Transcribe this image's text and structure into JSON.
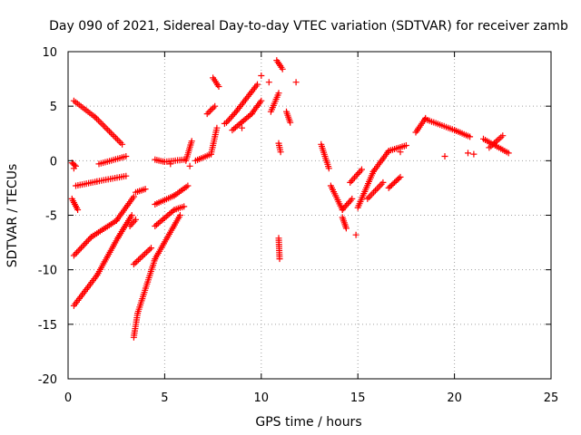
{
  "chart_data": {
    "type": "scatter",
    "title": "Day 090 of 2021, Sidereal Day-to-day VTEC variation (SDTVAR) for receiver zamb",
    "xlabel": "GPS time / hours",
    "ylabel": "SDTVAR / TECUs",
    "xlim": [
      0,
      25
    ],
    "ylim": [
      -20,
      10
    ],
    "xticks": [
      "0",
      "5",
      "10",
      "15",
      "20",
      "25"
    ],
    "yticks": [
      "-20",
      "-15",
      "-10",
      "-5",
      "0",
      "5",
      "10"
    ],
    "grid": true,
    "marker": "plus",
    "color": "#ff0000",
    "series": [
      {
        "name": "arc-01",
        "segments": [
          [
            0.3,
            5.5,
            1.4,
            4.0
          ],
          [
            1.4,
            4.0,
            2.8,
            1.5
          ]
        ]
      },
      {
        "name": "arc-02",
        "segments": [
          [
            0.2,
            -0.2,
            0.4,
            -0.5
          ]
        ]
      },
      {
        "name": "arc-03",
        "segments": [
          [
            0.4,
            -2.3,
            1.5,
            -1.9
          ],
          [
            1.5,
            -1.9,
            3.0,
            -1.4
          ]
        ]
      },
      {
        "name": "arc-04",
        "segments": [
          [
            1.6,
            -0.3,
            3.0,
            0.4
          ]
        ]
      },
      {
        "name": "arc-05",
        "segments": [
          [
            0.2,
            -3.5,
            0.5,
            -4.5
          ]
        ]
      },
      {
        "name": "arc-06",
        "segments": [
          [
            0.3,
            -8.7,
            1.2,
            -7.0
          ],
          [
            1.2,
            -7.0,
            2.5,
            -5.5
          ],
          [
            2.5,
            -5.5,
            3.4,
            -3.3
          ]
        ]
      },
      {
        "name": "arc-07",
        "segments": [
          [
            0.3,
            -13.3,
            1.5,
            -10.5
          ],
          [
            1.5,
            -10.5,
            2.6,
            -7.0
          ],
          [
            2.6,
            -7.0,
            3.3,
            -5.0
          ]
        ]
      },
      {
        "name": "arc-08",
        "segments": [
          [
            3.2,
            -6.0,
            3.5,
            -5.4
          ]
        ]
      },
      {
        "name": "arc-09",
        "segments": [
          [
            3.5,
            -2.9,
            4.0,
            -2.6
          ]
        ]
      },
      {
        "name": "arc-10",
        "segments": [
          [
            3.4,
            -9.5,
            4.3,
            -8.0
          ]
        ]
      },
      {
        "name": "arc-11",
        "segments": [
          [
            3.4,
            -16.2,
            3.6,
            -14.0
          ],
          [
            3.6,
            -14.0,
            4.5,
            -9.0
          ],
          [
            4.5,
            -9.0,
            5.8,
            -5.0
          ]
        ]
      },
      {
        "name": "arc-12",
        "segments": [
          [
            4.5,
            -6.0,
            5.5,
            -4.5
          ],
          [
            5.5,
            -4.5,
            6.0,
            -4.2
          ]
        ]
      },
      {
        "name": "arc-13",
        "segments": [
          [
            4.5,
            -4.0,
            5.5,
            -3.2
          ],
          [
            5.5,
            -3.2,
            6.2,
            -2.3
          ]
        ]
      },
      {
        "name": "arc-14",
        "segments": [
          [
            4.5,
            0.1,
            5.0,
            -0.1
          ],
          [
            5.0,
            -0.1,
            6.0,
            0.1
          ]
        ]
      },
      {
        "name": "arc-15",
        "segments": [
          [
            6.1,
            0.0,
            6.4,
            1.8
          ]
        ]
      },
      {
        "name": "arc-16",
        "segments": [
          [
            6.6,
            0.0,
            7.4,
            0.6
          ],
          [
            7.4,
            0.6,
            7.7,
            3.0
          ]
        ]
      },
      {
        "name": "arc-17",
        "segments": [
          [
            7.2,
            4.3,
            7.6,
            5.0
          ]
        ]
      },
      {
        "name": "arc-18",
        "segments": [
          [
            7.5,
            7.6,
            7.8,
            6.8
          ]
        ]
      },
      {
        "name": "arc-19",
        "segments": [
          [
            8.2,
            3.5,
            8.7,
            4.5
          ],
          [
            8.7,
            4.5,
            9.8,
            7.0
          ]
        ]
      },
      {
        "name": "arc-20",
        "segments": [
          [
            8.5,
            2.8,
            9.5,
            4.3
          ],
          [
            9.5,
            4.3,
            10.0,
            5.5
          ]
        ]
      },
      {
        "name": "arc-21",
        "segments": [
          [
            10.5,
            4.5,
            10.9,
            6.2
          ]
        ]
      },
      {
        "name": "arc-22",
        "segments": [
          [
            10.8,
            9.2,
            11.1,
            8.4
          ]
        ]
      },
      {
        "name": "arc-23",
        "segments": [
          [
            10.9,
            1.6,
            11.0,
            0.8
          ]
        ]
      },
      {
        "name": "arc-24",
        "segments": [
          [
            10.9,
            -7.1,
            10.95,
            -9.0
          ]
        ]
      },
      {
        "name": "arc-25",
        "segments": [
          [
            11.3,
            4.5,
            11.5,
            3.5
          ]
        ]
      },
      {
        "name": "arc-26",
        "segments": [
          [
            13.1,
            1.5,
            13.5,
            -0.7
          ]
        ]
      },
      {
        "name": "arc-27",
        "segments": [
          [
            13.6,
            -2.3,
            14.2,
            -4.5
          ],
          [
            14.2,
            -4.5,
            14.7,
            -3.5
          ]
        ]
      },
      {
        "name": "arc-28",
        "segments": [
          [
            14.2,
            -5.2,
            14.4,
            -6.2
          ]
        ]
      },
      {
        "name": "arc-29",
        "segments": [
          [
            14.6,
            -2.0,
            15.2,
            -0.8
          ]
        ]
      },
      {
        "name": "arc-30",
        "segments": [
          [
            15.0,
            -4.3,
            15.8,
            -1.0
          ],
          [
            15.8,
            -1.0,
            16.6,
            0.9
          ],
          [
            16.6,
            0.9,
            17.5,
            1.4
          ]
        ]
      },
      {
        "name": "arc-31",
        "segments": [
          [
            15.5,
            -3.5,
            16.3,
            -2.0
          ]
        ]
      },
      {
        "name": "arc-32",
        "segments": [
          [
            16.6,
            -2.5,
            17.2,
            -1.5
          ]
        ]
      },
      {
        "name": "arc-33",
        "segments": [
          [
            18.0,
            2.6,
            18.5,
            3.9
          ]
        ]
      },
      {
        "name": "arc-34",
        "segments": [
          [
            18.5,
            3.8,
            20.0,
            2.8
          ],
          [
            20.0,
            2.8,
            20.8,
            2.2
          ]
        ]
      },
      {
        "name": "arc-35",
        "segments": [
          [
            21.5,
            2.0,
            22.8,
            0.7
          ]
        ]
      },
      {
        "name": "arc-36",
        "segments": [
          [
            21.8,
            1.2,
            22.5,
            2.3
          ]
        ]
      }
    ],
    "isolated_points": [
      [
        0.3,
        -0.7
      ],
      [
        5.3,
        -0.3
      ],
      [
        6.3,
        -0.5
      ],
      [
        8.1,
        3.4
      ],
      [
        9.0,
        3.0
      ],
      [
        10.0,
        7.8
      ],
      [
        10.4,
        7.2
      ],
      [
        11.8,
        7.2
      ],
      [
        14.9,
        -6.8
      ],
      [
        17.2,
        0.8
      ],
      [
        19.5,
        0.4
      ],
      [
        20.7,
        0.7
      ],
      [
        21.0,
        0.6
      ]
    ]
  }
}
